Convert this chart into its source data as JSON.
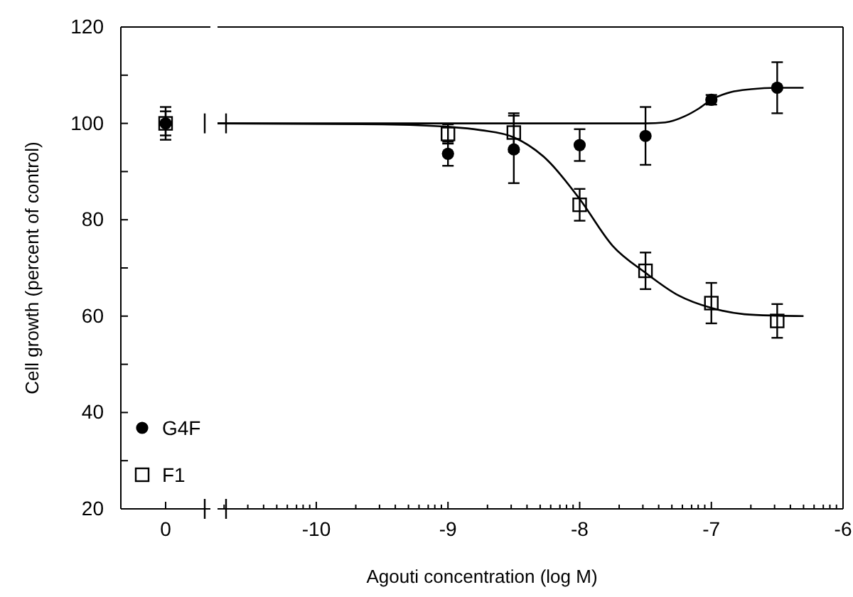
{
  "chart_data": [
    {
      "type": "scatter",
      "categories": [
        "0"
      ],
      "ylabel": "Cell growth (percent of control)",
      "ylim": [
        20,
        120
      ],
      "yticks": [
        20,
        {
          "value": 30,
          "label": null
        },
        40,
        {
          "value": 50,
          "label": null
        },
        60,
        {
          "value": 70,
          "label": null
        },
        80,
        {
          "value": 90,
          "label": null
        },
        100,
        {
          "value": 110,
          "label": null
        },
        120
      ],
      "legend": "bottom left",
      "series": [
        {
          "name": "G4F",
          "color": "#000000",
          "marker": "circle",
          "values": [
            100
          ],
          "errors": [
            3.4
          ]
        },
        {
          "name": "F1",
          "color": "#000000",
          "marker": "square",
          "values": [
            100
          ],
          "errors": [
            2.5
          ]
        }
      ]
    },
    {
      "type": "scatter",
      "xlabel": "Agouti concentration (log M)",
      "xlim": [
        -10.75,
        -6
      ],
      "ylim": [
        20,
        120
      ],
      "tick_labels": "x",
      "xticks": [
        {
          "value": -10.7,
          "label": null
        },
        {
          "value": -10.52,
          "label": null
        },
        {
          "value": -10.4,
          "label": null
        },
        {
          "value": -10.3,
          "label": null
        },
        {
          "value": -10.22,
          "label": null
        },
        {
          "value": -10.15,
          "label": null
        },
        {
          "value": -10.1,
          "label": null
        },
        {
          "value": -10.05,
          "label": null
        },
        -10,
        {
          "value": -9.7,
          "label": null
        },
        {
          "value": -9.52,
          "label": null
        },
        {
          "value": -9.4,
          "label": null
        },
        {
          "value": -9.3,
          "label": null
        },
        {
          "value": -9.22,
          "label": null
        },
        {
          "value": -9.15,
          "label": null
        },
        {
          "value": -9.1,
          "label": null
        },
        {
          "value": -9.05,
          "label": null
        },
        -9,
        {
          "value": -8.7,
          "label": null
        },
        {
          "value": -8.52,
          "label": null
        },
        {
          "value": -8.4,
          "label": null
        },
        {
          "value": -8.3,
          "label": null
        },
        {
          "value": -8.22,
          "label": null
        },
        {
          "value": -8.15,
          "label": null
        },
        {
          "value": -8.1,
          "label": null
        },
        {
          "value": -8.05,
          "label": null
        },
        -8,
        {
          "value": -7.7,
          "label": null
        },
        {
          "value": -7.52,
          "label": null
        },
        {
          "value": -7.4,
          "label": null
        },
        {
          "value": -7.3,
          "label": null
        },
        {
          "value": -7.22,
          "label": null
        },
        {
          "value": -7.15,
          "label": null
        },
        {
          "value": -7.1,
          "label": null
        },
        {
          "value": -7.05,
          "label": null
        },
        -7,
        {
          "value": -6.7,
          "label": null
        },
        {
          "value": -6.52,
          "label": null
        },
        {
          "value": -6.4,
          "label": null
        },
        {
          "value": -6.3,
          "label": null
        },
        {
          "value": -6.22,
          "label": null
        },
        {
          "value": -6.15,
          "label": null
        },
        {
          "value": -6.1,
          "label": null
        },
        {
          "value": -6.05,
          "label": null
        },
        -6
      ],
      "series": [
        {
          "type": "line",
          "color": "#000000",
          "x": [
            -10.75,
            -9.5,
            -8,
            -7.5,
            -7.35,
            -7.2,
            -7.1,
            -7,
            -6.85,
            -6.7,
            -6.5,
            -6.3
          ],
          "values": [
            100,
            100,
            100,
            100,
            100.2,
            101.5,
            103,
            104.9,
            106.5,
            107.1,
            107.4,
            107.4
          ]
        },
        {
          "type": "line",
          "color": "#000000",
          "x": [
            -10.75,
            -9.5,
            -9,
            -8.75,
            -8.5,
            -8.25,
            -8,
            -7.75,
            -7.5,
            -7.25,
            -7,
            -6.75,
            -6.5,
            -6.3
          ],
          "values": [
            100,
            99.8,
            99.3,
            98.6,
            97.1,
            92.5,
            84.3,
            74.6,
            69,
            64.3,
            61.7,
            60.4,
            60.1,
            60
          ]
        },
        {
          "color": "#000000",
          "marker": "circle",
          "x": [
            -9,
            -8.5,
            -8,
            -7.5,
            -7,
            -6.5
          ],
          "values": [
            93.7,
            94.6,
            95.5,
            97.4,
            104.9,
            107.4
          ],
          "errors": [
            2.5,
            7,
            3.3,
            6,
            1,
            5.3
          ]
        },
        {
          "color": "#000000",
          "marker": "square",
          "x": [
            -9,
            -8.5,
            -8,
            -7.5,
            -7,
            -6.5
          ],
          "values": [
            97.8,
            98.1,
            83.1,
            69.4,
            62.7,
            59
          ],
          "errors": [
            2,
            4,
            3.3,
            3.8,
            4.2,
            3.5
          ]
        }
      ]
    }
  ]
}
